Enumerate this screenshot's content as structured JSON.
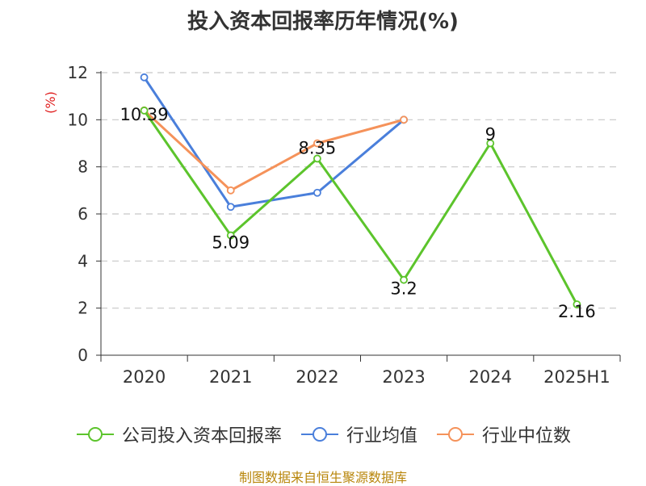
{
  "title": "投入资本回报率历年情况(%)",
  "footer": "制图数据来自恒生聚源数据库",
  "chart_data": {
    "type": "line",
    "categories": [
      "2020",
      "2021",
      "2022",
      "2023",
      "2024",
      "2025H1"
    ],
    "ylabel": "(%)",
    "ylim": [
      0,
      12
    ],
    "yticks": [
      0,
      2,
      4,
      6,
      8,
      10,
      12
    ],
    "grid": true,
    "legend_position": "bottom",
    "series": [
      {
        "name": "公司投入资本回报率",
        "color": "#5cc42c",
        "values": [
          10.39,
          5.09,
          8.35,
          3.2,
          9,
          2.16
        ],
        "labels": [
          "10.39",
          "5.09",
          "8.35",
          "3.2",
          "9",
          "2.16"
        ]
      },
      {
        "name": "行业均值",
        "color": "#4a7fdb",
        "values": [
          11.8,
          6.3,
          6.9,
          10.0,
          null,
          null
        ]
      },
      {
        "name": "行业中位数",
        "color": "#f5925a",
        "values": [
          10.4,
          7.0,
          9.0,
          10.0,
          null,
          null
        ]
      }
    ]
  }
}
